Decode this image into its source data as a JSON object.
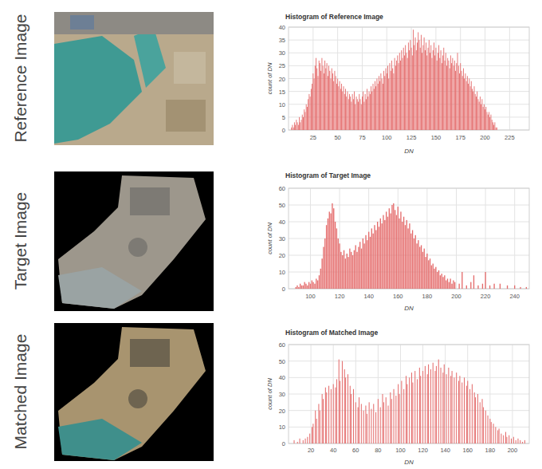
{
  "figure": {
    "row_labels": [
      "Reference Image",
      "Target Image",
      "Matched Image"
    ]
  },
  "chart_data": [
    {
      "type": "bar",
      "title": "Histogram of Reference Image",
      "x_label": "DN",
      "y_label": "count of DN",
      "color": "#e46a6a",
      "grid": true,
      "xlim": [
        0,
        245
      ],
      "xticks": [
        25,
        50,
        75,
        100,
        125,
        150,
        175,
        200,
        225
      ],
      "ylim": [
        0,
        40
      ],
      "yticks": [
        0,
        5,
        10,
        15,
        20,
        25,
        30,
        35,
        40
      ],
      "x": [
        3,
        4,
        5,
        6,
        7,
        8,
        9,
        10,
        11,
        12,
        13,
        14,
        15,
        16,
        17,
        18,
        19,
        20,
        21,
        22,
        23,
        24,
        25,
        26,
        27,
        28,
        29,
        30,
        31,
        32,
        33,
        34,
        35,
        36,
        37,
        38,
        39,
        40,
        41,
        42,
        43,
        44,
        45,
        46,
        47,
        48,
        49,
        50,
        51,
        52,
        53,
        54,
        55,
        56,
        57,
        58,
        59,
        60,
        61,
        62,
        63,
        64,
        65,
        66,
        67,
        68,
        69,
        70,
        71,
        72,
        73,
        74,
        75,
        76,
        77,
        78,
        79,
        80,
        81,
        82,
        83,
        84,
        85,
        86,
        87,
        88,
        89,
        90,
        91,
        92,
        93,
        94,
        95,
        96,
        97,
        98,
        99,
        100,
        101,
        102,
        103,
        104,
        105,
        106,
        107,
        108,
        109,
        110,
        111,
        112,
        113,
        114,
        115,
        116,
        117,
        118,
        119,
        120,
        121,
        122,
        123,
        124,
        125,
        126,
        127,
        128,
        129,
        130,
        131,
        132,
        133,
        134,
        135,
        136,
        137,
        138,
        139,
        140,
        141,
        142,
        143,
        144,
        145,
        146,
        147,
        148,
        149,
        150,
        151,
        152,
        153,
        154,
        155,
        156,
        157,
        158,
        159,
        160,
        161,
        162,
        163,
        164,
        165,
        166,
        167,
        168,
        169,
        170,
        171,
        172,
        173,
        174,
        175,
        176,
        177,
        178,
        179,
        180,
        181,
        182,
        183,
        184,
        185,
        186,
        187,
        188,
        189,
        190,
        191,
        192,
        193,
        194,
        195,
        196,
        197,
        198,
        199,
        200,
        201,
        202,
        203,
        204,
        205,
        206,
        207,
        208,
        209,
        210,
        211,
        212
      ],
      "values": [
        1,
        2,
        1,
        3,
        2,
        4,
        3,
        2,
        5,
        3,
        4,
        6,
        5,
        8,
        7,
        10,
        9,
        12,
        14,
        13,
        16,
        18,
        22,
        20,
        25,
        28,
        24,
        21,
        27,
        26,
        23,
        28,
        25,
        22,
        27,
        24,
        26,
        21,
        25,
        23,
        20,
        24,
        22,
        19,
        23,
        21,
        18,
        20,
        17,
        19,
        16,
        18,
        15,
        17,
        14,
        16,
        13,
        15,
        12,
        14,
        13,
        11,
        14,
        12,
        15,
        10,
        13,
        12,
        11,
        14,
        12,
        10,
        13,
        15,
        11,
        14,
        12,
        16,
        13,
        15,
        14,
        17,
        15,
        18,
        16,
        19,
        17,
        20,
        18,
        21,
        19,
        22,
        20,
        18,
        23,
        21,
        24,
        22,
        25,
        20,
        26,
        23,
        27,
        24,
        22,
        28,
        25,
        27,
        29,
        26,
        30,
        27,
        31,
        28,
        32,
        29,
        33,
        30,
        28,
        34,
        31,
        35,
        32,
        29,
        39,
        33,
        36,
        31,
        34,
        38,
        35,
        32,
        37,
        30,
        33,
        36,
        31,
        34,
        29,
        32,
        35,
        30,
        33,
        28,
        31,
        34,
        29,
        32,
        27,
        30,
        33,
        28,
        31,
        26,
        29,
        32,
        27,
        30,
        25,
        28,
        27,
        24,
        29,
        26,
        28,
        25,
        27,
        23,
        26,
        30,
        25,
        22,
        26,
        23,
        21,
        24,
        20,
        22,
        19,
        21,
        18,
        20,
        17,
        19,
        16,
        15,
        17,
        14,
        13,
        15,
        12,
        11,
        13,
        10,
        12,
        9,
        10,
        8,
        9,
        7,
        6,
        7,
        5,
        6,
        4,
        3,
        2,
        3,
        1,
        1
      ]
    },
    {
      "type": "bar",
      "title": "Histogram of Target Image",
      "x_label": "DN",
      "y_label": "count of DN",
      "color": "#e46a6a",
      "grid": true,
      "xlim": [
        85,
        250
      ],
      "xticks": [
        100,
        120,
        140,
        160,
        180,
        200,
        220,
        240
      ],
      "ylim": [
        0,
        60
      ],
      "yticks": [
        0,
        10,
        20,
        30,
        40,
        50,
        60
      ],
      "x": [
        90,
        91,
        92,
        93,
        94,
        95,
        96,
        97,
        98,
        99,
        100,
        101,
        102,
        103,
        104,
        105,
        106,
        107,
        108,
        109,
        110,
        111,
        112,
        113,
        114,
        115,
        116,
        117,
        118,
        119,
        120,
        121,
        122,
        123,
        124,
        125,
        126,
        127,
        128,
        129,
        130,
        131,
        132,
        133,
        134,
        135,
        136,
        137,
        138,
        139,
        140,
        141,
        142,
        143,
        144,
        145,
        146,
        147,
        148,
        149,
        150,
        151,
        152,
        153,
        154,
        155,
        156,
        157,
        158,
        159,
        160,
        161,
        162,
        163,
        164,
        165,
        166,
        167,
        168,
        169,
        170,
        171,
        172,
        173,
        174,
        175,
        176,
        177,
        178,
        179,
        180,
        181,
        182,
        183,
        184,
        185,
        186,
        187,
        188,
        189,
        190,
        191,
        192,
        193,
        194,
        195,
        196,
        197,
        198,
        199,
        202,
        204,
        207,
        210,
        212,
        215,
        218,
        220,
        223,
        226,
        230,
        235,
        240,
        244,
        248
      ],
      "values": [
        1,
        2,
        1,
        3,
        2,
        2,
        4,
        3,
        2,
        4,
        3,
        5,
        4,
        3,
        6,
        5,
        8,
        12,
        18,
        25,
        30,
        38,
        42,
        46,
        45,
        51,
        48,
        40,
        36,
        30,
        27,
        22,
        20,
        23,
        18,
        21,
        19,
        24,
        22,
        20,
        23,
        26,
        22,
        25,
        28,
        24,
        30,
        27,
        32,
        29,
        34,
        31,
        36,
        33,
        38,
        35,
        40,
        37,
        42,
        39,
        44,
        41,
        46,
        43,
        48,
        45,
        50,
        51,
        47,
        44,
        49,
        42,
        46,
        40,
        43,
        38,
        41,
        36,
        39,
        33,
        35,
        30,
        32,
        27,
        29,
        25,
        26,
        22,
        24,
        19,
        21,
        17,
        18,
        14,
        15,
        12,
        13,
        10,
        11,
        8,
        9,
        7,
        8,
        5,
        6,
        4,
        6,
        3,
        5,
        4,
        3,
        10,
        2,
        4,
        8,
        2,
        3,
        10,
        2,
        3,
        3,
        2,
        2,
        1,
        1
      ]
    },
    {
      "type": "bar",
      "title": "Histogram of Matched Image",
      "x_label": "DN",
      "y_label": "count of DN",
      "color": "#e46a6a",
      "grid": true,
      "xlim": [
        0,
        215
      ],
      "xticks": [
        20,
        40,
        60,
        80,
        100,
        120,
        140,
        160,
        180,
        200
      ],
      "ylim": [
        0,
        60
      ],
      "yticks": [
        0,
        10,
        20,
        30,
        40,
        50,
        60
      ],
      "x": [
        5,
        8,
        10,
        13,
        15,
        17,
        19,
        21,
        22,
        24,
        25,
        27,
        28,
        30,
        31,
        33,
        34,
        36,
        38,
        40,
        42,
        43,
        45,
        46,
        48,
        50,
        51,
        53,
        55,
        56,
        58,
        60,
        62,
        63,
        65,
        67,
        69,
        70,
        72,
        74,
        76,
        78,
        80,
        82,
        84,
        85,
        87,
        89,
        91,
        92,
        94,
        96,
        98,
        99,
        101,
        103,
        105,
        106,
        108,
        110,
        111,
        113,
        115,
        117,
        118,
        120,
        122,
        124,
        125,
        127,
        129,
        131,
        132,
        134,
        136,
        138,
        139,
        141,
        143,
        145,
        146,
        148,
        150,
        152,
        153,
        155,
        157,
        159,
        160,
        162,
        164,
        166,
        167,
        169,
        171,
        173,
        174,
        176,
        178,
        180,
        181,
        183,
        185,
        187,
        188,
        190,
        192,
        194,
        195,
        197,
        199,
        201,
        203,
        205,
        207,
        209,
        211
      ],
      "values": [
        2,
        1,
        3,
        2,
        3,
        4,
        6,
        10,
        12,
        20,
        15,
        24,
        20,
        30,
        27,
        34,
        31,
        35,
        33,
        36,
        34,
        39,
        51,
        38,
        50,
        45,
        40,
        42,
        35,
        30,
        33,
        25,
        22,
        28,
        24,
        20,
        23,
        18,
        25,
        21,
        24,
        19,
        27,
        22,
        30,
        25,
        28,
        23,
        31,
        27,
        33,
        29,
        36,
        30,
        38,
        33,
        41,
        36,
        40,
        43,
        37,
        44,
        39,
        46,
        41,
        44,
        47,
        42,
        48,
        45,
        49,
        44,
        47,
        51,
        46,
        43,
        48,
        42,
        46,
        41,
        44,
        40,
        43,
        38,
        41,
        37,
        40,
        35,
        38,
        33,
        36,
        31,
        28,
        30,
        25,
        27,
        22,
        20,
        17,
        15,
        13,
        12,
        10,
        8,
        9,
        6,
        5,
        7,
        4,
        5,
        3,
        4,
        2,
        3,
        2,
        1,
        2
      ]
    }
  ]
}
